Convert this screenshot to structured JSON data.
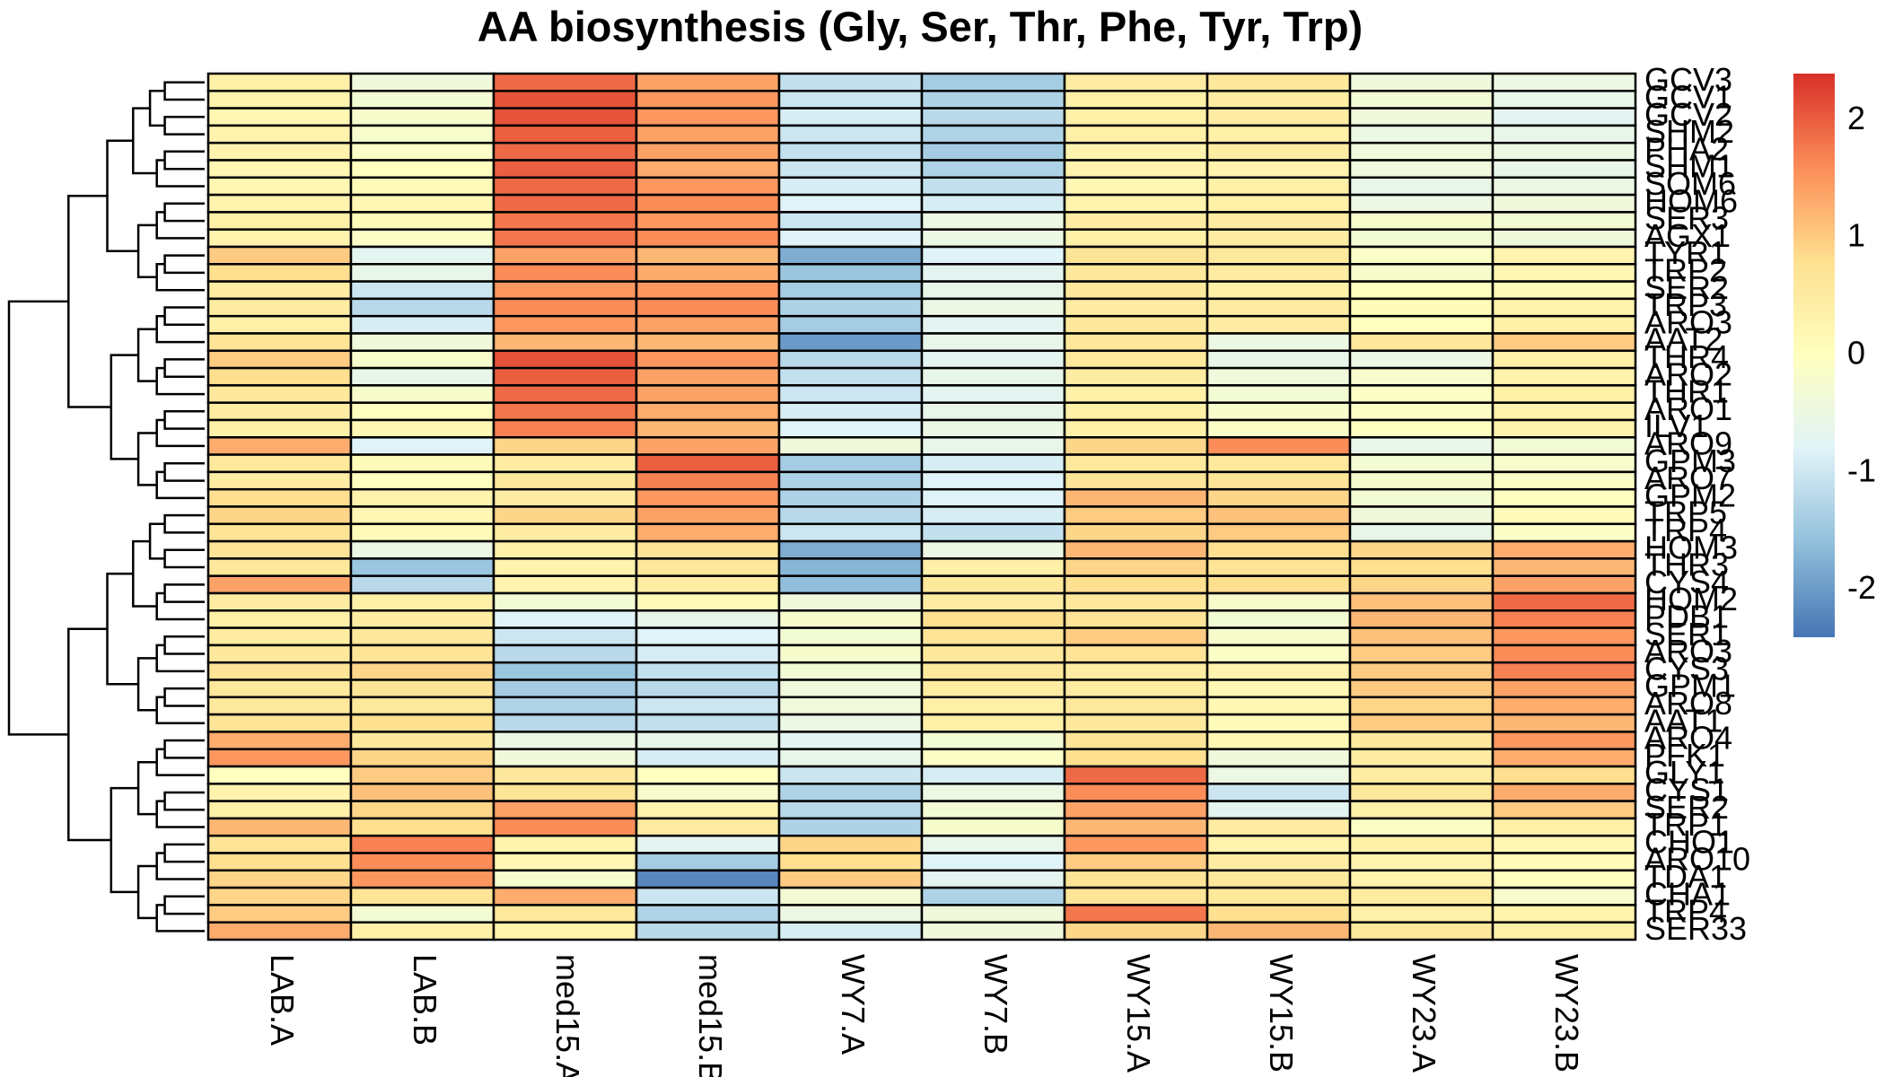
{
  "chart_data": {
    "type": "heatmap",
    "title": "AA biosynthesis (Gly, Ser, Thr, Phe, Tyr, Trp)",
    "columns": [
      "LAB.A",
      "LAB.B",
      "med15.A",
      "med15.B",
      "WY7.A",
      "WY7.B",
      "WY15.A",
      "WY15.B",
      "WY23.A",
      "WY23.B"
    ],
    "rows": [
      "GCV3",
      "GCV1",
      "GCV2",
      "SHM2",
      "PHA2",
      "SHM1",
      "SOM6",
      "HOM6",
      "SER3",
      "AGX1",
      "TYR1",
      "TRP2",
      "SER2",
      "TRP3",
      "ARO3",
      "AAT2",
      "THR4",
      "ARO2",
      "THR1",
      "ARO1",
      "ILV1",
      "ARO9",
      "GPM3",
      "ARO7",
      "GPM2",
      "TRP5",
      "TRP4",
      "HOM3",
      "THR3",
      "CYS4",
      "HOM2",
      "PDB1",
      "SER1",
      "ARO3",
      "CYS3",
      "GPM1",
      "ARO8",
      "AAT1",
      "ARO4",
      "PFK1",
      "GLY1",
      "CYS1",
      "SER2",
      "TRP1",
      "CHO1",
      "ARO10",
      "TDA1",
      "CHA1",
      "TRP4",
      "SER33"
    ],
    "values": [
      [
        0.4,
        -0.4,
        1.9,
        1.4,
        -1.1,
        -1.4,
        0.5,
        0.6,
        -0.4,
        -0.5
      ],
      [
        0.3,
        -0.3,
        2.1,
        1.5,
        -1.0,
        -1.3,
        0.4,
        0.5,
        -0.3,
        -0.6
      ],
      [
        0.2,
        -0.2,
        2.1,
        1.5,
        -0.9,
        -1.2,
        0.4,
        0.5,
        -0.4,
        -0.7
      ],
      [
        0.3,
        -0.2,
        2.0,
        1.4,
        -1.0,
        -1.3,
        0.4,
        0.4,
        -0.5,
        -0.6
      ],
      [
        0.3,
        -0.1,
        1.9,
        1.4,
        -1.1,
        -1.4,
        0.3,
        0.5,
        -0.4,
        -0.5
      ],
      [
        0.2,
        0.0,
        2.0,
        1.3,
        -1.0,
        -1.3,
        0.3,
        0.3,
        -0.4,
        -0.6
      ],
      [
        0.2,
        0.1,
        1.9,
        1.5,
        -0.9,
        -1.1,
        0.2,
        0.4,
        -0.6,
        -0.5
      ],
      [
        0.3,
        0.2,
        1.9,
        1.6,
        -0.8,
        -0.9,
        0.3,
        0.4,
        -0.5,
        -0.4
      ],
      [
        0.4,
        0.1,
        1.8,
        1.5,
        -1.0,
        -0.5,
        0.5,
        0.5,
        -0.2,
        -0.3
      ],
      [
        0.3,
        -0.1,
        1.8,
        1.6,
        -0.8,
        -0.5,
        0.4,
        0.5,
        -0.3,
        -0.4
      ],
      [
        1.0,
        -0.7,
        1.4,
        1.2,
        -1.8,
        -0.8,
        0.7,
        0.6,
        -0.1,
        0.3
      ],
      [
        0.8,
        -0.6,
        1.6,
        1.3,
        -1.5,
        -0.7,
        0.6,
        0.5,
        -0.2,
        0.2
      ],
      [
        0.5,
        -1.0,
        1.5,
        1.5,
        -1.4,
        -0.6,
        0.6,
        0.4,
        0.0,
        0.1
      ],
      [
        0.5,
        -1.2,
        1.6,
        1.6,
        -1.3,
        -0.5,
        0.5,
        0.5,
        0.1,
        0.3
      ],
      [
        0.4,
        -0.9,
        1.5,
        1.4,
        -1.4,
        -0.7,
        0.6,
        0.5,
        0.0,
        0.4
      ],
      [
        0.7,
        -0.4,
        1.2,
        1.2,
        -2.0,
        -0.6,
        0.6,
        -0.5,
        0.6,
        1.0
      ],
      [
        1.0,
        -0.2,
        2.1,
        1.5,
        -1.2,
        -0.7,
        0.6,
        -0.6,
        -0.5,
        0.4
      ],
      [
        0.8,
        -0.6,
        2.0,
        1.4,
        -1.1,
        -0.6,
        0.5,
        -0.4,
        -0.2,
        0.3
      ],
      [
        0.6,
        -0.2,
        1.9,
        1.4,
        -1.0,
        -0.7,
        0.4,
        -0.3,
        -0.1,
        0.4
      ],
      [
        0.5,
        0.0,
        1.8,
        1.3,
        -0.9,
        -0.6,
        0.4,
        -0.2,
        -0.1,
        0.3
      ],
      [
        0.4,
        0.2,
        1.7,
        1.2,
        -0.8,
        -0.5,
        0.4,
        -0.1,
        0.0,
        0.3
      ],
      [
        1.3,
        -0.8,
        0.9,
        1.4,
        -0.4,
        -0.6,
        0.9,
        1.6,
        -0.6,
        -0.3
      ],
      [
        0.6,
        0.1,
        0.5,
        2.0,
        -1.4,
        -0.9,
        0.6,
        0.6,
        -0.3,
        -0.2
      ],
      [
        0.5,
        0.0,
        0.6,
        1.7,
        -1.3,
        -0.8,
        0.7,
        0.7,
        -0.2,
        -0.1
      ],
      [
        0.8,
        0.3,
        0.5,
        1.5,
        -1.3,
        -0.8,
        1.2,
        0.9,
        -0.3,
        0.0
      ],
      [
        0.9,
        0.2,
        0.9,
        1.4,
        -1.2,
        -0.9,
        1.0,
        1.1,
        -0.4,
        0.1
      ],
      [
        0.7,
        0.1,
        0.5,
        1.3,
        -1.0,
        -1.1,
        0.9,
        1.0,
        -0.6,
        -0.1
      ],
      [
        0.7,
        -0.5,
        0.4,
        0.7,
        -1.8,
        -0.5,
        1.2,
        0.8,
        0.9,
        1.3
      ],
      [
        0.6,
        -1.5,
        0.3,
        0.6,
        -1.7,
        0.4,
        0.9,
        0.7,
        0.8,
        1.2
      ],
      [
        1.4,
        -1.2,
        0.3,
        0.5,
        -1.6,
        0.6,
        0.8,
        0.8,
        0.9,
        1.4
      ],
      [
        0.5,
        0.4,
        -0.3,
        0.1,
        -0.4,
        0.5,
        0.6,
        -0.2,
        1.1,
        1.9
      ],
      [
        0.4,
        0.5,
        -0.8,
        -0.6,
        -0.2,
        0.8,
        0.7,
        -0.3,
        1.2,
        1.7
      ],
      [
        0.5,
        0.6,
        -1.0,
        -0.8,
        -0.3,
        0.7,
        1.0,
        -0.2,
        1.1,
        1.5
      ],
      [
        0.6,
        0.7,
        -1.2,
        -0.9,
        -0.2,
        0.6,
        0.7,
        -0.1,
        1.0,
        1.6
      ],
      [
        0.7,
        0.9,
        -1.5,
        -1.1,
        -0.3,
        0.6,
        0.5,
        0.3,
        1.0,
        1.7
      ],
      [
        0.6,
        0.7,
        -1.4,
        -1.2,
        -0.4,
        0.5,
        0.5,
        0.2,
        1.0,
        1.4
      ],
      [
        0.6,
        0.6,
        -1.3,
        -1.0,
        -0.4,
        0.4,
        0.6,
        0.2,
        0.9,
        1.3
      ],
      [
        0.7,
        0.8,
        -1.2,
        -1.1,
        -0.5,
        0.4,
        0.6,
        0.1,
        1.0,
        1.2
      ],
      [
        1.3,
        0.6,
        -0.5,
        -0.6,
        -0.7,
        -0.3,
        0.7,
        0.2,
        0.6,
        1.5
      ],
      [
        1.5,
        0.9,
        -0.4,
        -0.9,
        -0.6,
        -0.1,
        0.8,
        -0.4,
        0.5,
        1.3
      ],
      [
        0.0,
        1.0,
        0.6,
        0.0,
        -1.0,
        -0.9,
        1.9,
        -0.5,
        0.5,
        0.8
      ],
      [
        0.3,
        1.1,
        0.7,
        -0.2,
        -1.3,
        -0.5,
        1.6,
        -1.0,
        0.6,
        1.3
      ],
      [
        0.4,
        0.9,
        1.4,
        0.3,
        -1.2,
        -0.3,
        1.4,
        -0.7,
        0.4,
        1.0
      ],
      [
        1.2,
        0.8,
        1.6,
        0.5,
        -1.3,
        -0.2,
        1.2,
        0.5,
        -0.1,
        0.4
      ],
      [
        0.7,
        1.7,
        0.3,
        -0.7,
        0.9,
        -0.6,
        1.5,
        0.3,
        0.4,
        0.2
      ],
      [
        0.8,
        1.6,
        0.2,
        -1.4,
        0.8,
        -0.8,
        1.0,
        0.5,
        0.3,
        0.1
      ],
      [
        0.9,
        1.5,
        -0.2,
        -2.2,
        1.0,
        -0.7,
        0.7,
        0.6,
        0.3,
        0.0
      ],
      [
        0.9,
        0.7,
        1.3,
        -1.0,
        -0.3,
        -1.3,
        0.7,
        0.6,
        0.5,
        -0.2
      ],
      [
        1.0,
        -0.3,
        0.6,
        -1.3,
        -0.5,
        -0.4,
        1.8,
        0.8,
        0.4,
        0.3
      ],
      [
        1.3,
        0.4,
        0.3,
        -1.2,
        -0.9,
        -0.4,
        0.9,
        1.2,
        0.6,
        0.4
      ]
    ],
    "scale_ticks": [
      2,
      1,
      0,
      -1,
      -2
    ],
    "scale_range": [
      -2.4,
      2.4
    ],
    "palette": [
      "#4575B4",
      "#91BFDB",
      "#E0F3F8",
      "#FFFFBF",
      "#FEE090",
      "#FC8D59",
      "#D73027"
    ],
    "legend_position": "right",
    "row_dendrogram": true
  }
}
